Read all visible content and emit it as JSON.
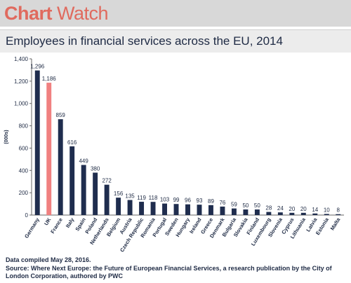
{
  "brand": {
    "part1": "Chart",
    "part2": "Watch"
  },
  "chart_data": {
    "type": "bar",
    "title": "Employees in financial services across the EU, 2014",
    "ylabel": "(000s)",
    "xlabel": "",
    "ylim": [
      0,
      1400
    ],
    "yticks": [
      "0",
      "200",
      "400",
      "600",
      "800",
      "1,000",
      "1,200",
      "1,400"
    ],
    "ytick_values": [
      0,
      200,
      400,
      600,
      800,
      1000,
      1200,
      1400
    ],
    "categories": [
      "Germany",
      "UK",
      "France",
      "Italy",
      "Spain",
      "Poland",
      "Netherlands",
      "Belgium",
      "Austria",
      "Czech Republic",
      "Romania",
      "Portugal",
      "Sweden",
      "Hungary",
      "Ireland",
      "Greece",
      "Denmark",
      "Bulgaria",
      "Slovakia",
      "Finland",
      "Luxembourg",
      "Slovenia",
      "Cyprus",
      "Lithuania",
      "Latvia",
      "Estonia",
      "Malta"
    ],
    "values": [
      1296,
      1186,
      859,
      616,
      449,
      380,
      272,
      156,
      135,
      119,
      118,
      103,
      99,
      96,
      93,
      89,
      76,
      59,
      50,
      50,
      28,
      24,
      20,
      20,
      14,
      10,
      8
    ],
    "value_labels": [
      "1,296",
      "1,186",
      "859",
      "616",
      "449",
      "380",
      "272",
      "156",
      "135",
      "119",
      "118",
      "103",
      "99",
      "96",
      "93",
      "89",
      "76",
      "59",
      "50",
      "50",
      "28",
      "24",
      "20",
      "20",
      "14",
      "10",
      "8"
    ],
    "highlight_category": "UK",
    "colors": {
      "default": "#1f2d4e",
      "highlight": "#f08080",
      "text": "#1e2a44",
      "axis": "#666666"
    },
    "grid": false,
    "legend": "none"
  },
  "footer": {
    "compiled": "Data compiled May 28, 2016.",
    "source": "Source: Where Next Europe: the Future of European Financial Services, a research publication by the City of London Corporation, authored by PWC"
  }
}
